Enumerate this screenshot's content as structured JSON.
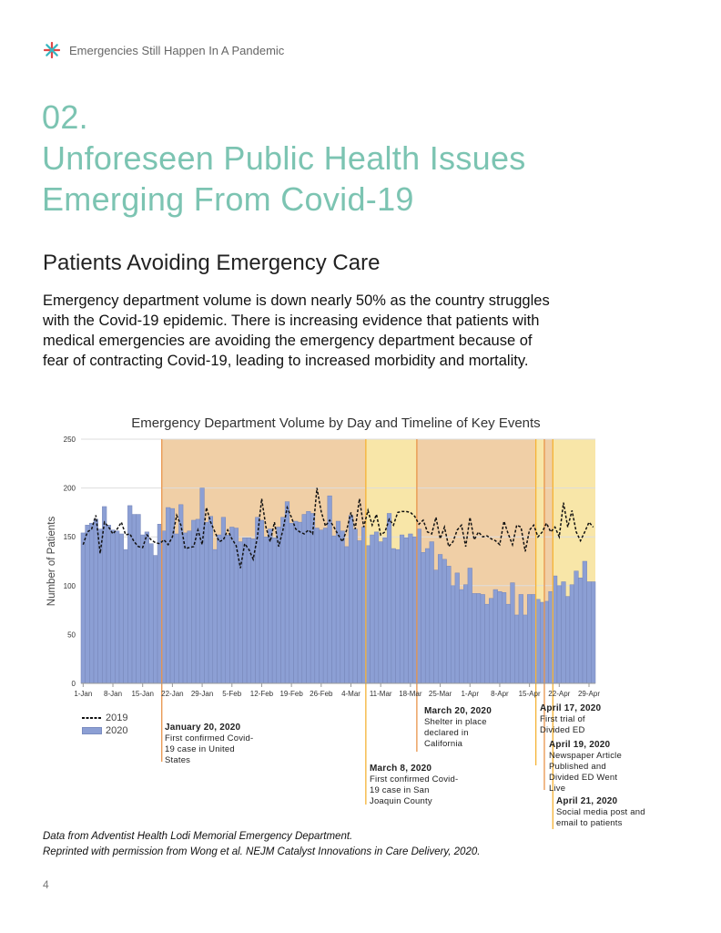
{
  "header": {
    "logo_icon": "asterisk-star-logo-icon",
    "title": "Emergencies Still Happen In A Pandemic"
  },
  "section": {
    "number": "02.",
    "title_line1": "Unforeseen Public Health Issues",
    "title_line2": "Emerging From Covid-19",
    "accent": "#7cc4b2"
  },
  "subheading": "Patients Avoiding Emergency Care",
  "paragraph": "Emergency department volume is down nearly 50% as the country struggles with the Covid-19 epidemic. There is increasing evidence that patients with medical emergencies are avoiding the emergency department because of fear of contracting Covid-19, leading to increased morbidity and mortality.",
  "chart_data": {
    "type": "bar",
    "title": "Emergency Department Volume by Day and Timeline of Key Events",
    "ylabel": "Number of Patients",
    "xlabel": "",
    "ylim": [
      0,
      250
    ],
    "yticks": [
      0,
      50,
      100,
      150,
      200,
      250
    ],
    "grid": true,
    "legend_placement": "bottom-left",
    "xtick_labels": [
      "1-Jan",
      "8-Jan",
      "15-Jan",
      "22-Jan",
      "29-Jan",
      "5-Feb",
      "12-Feb",
      "19-Feb",
      "26-Feb",
      "4-Mar",
      "11-Mar",
      "18-Mar",
      "25-Mar",
      "1-Apr",
      "8-Apr",
      "15-Apr",
      "22-Apr",
      "29-Apr"
    ],
    "series": [
      {
        "name": "2020",
        "kind": "bar",
        "color": "#8c9fd4",
        "values": [
          154,
          162,
          164,
          168,
          158,
          181,
          162,
          157,
          156,
          153,
          137,
          182,
          173,
          173,
          152,
          155,
          143,
          131,
          163,
          156,
          180,
          179,
          153,
          183,
          154,
          156,
          167,
          168,
          200,
          165,
          171,
          137,
          152,
          170,
          152,
          160,
          159,
          145,
          149,
          149,
          148,
          170,
          167,
          150,
          158,
          149,
          160,
          170,
          186,
          164,
          166,
          165,
          173,
          176,
          174,
          159,
          157,
          159,
          192,
          151,
          166,
          156,
          140,
          172,
          158,
          146,
          160,
          141,
          152,
          155,
          145,
          149,
          174,
          138,
          137,
          152,
          149,
          153,
          150,
          158,
          134,
          138,
          145,
          116,
          132,
          127,
          120,
          100,
          113,
          96,
          101,
          118,
          92,
          92,
          91,
          81,
          87,
          96,
          94,
          93,
          81,
          103,
          70,
          91,
          70,
          91,
          91,
          86,
          83,
          84,
          94,
          110,
          100,
          104,
          89,
          101,
          115,
          108,
          125,
          104,
          104
        ]
      },
      {
        "name": "2019",
        "kind": "dashed-line",
        "color": "#111111",
        "values": [
          142,
          155,
          158,
          172,
          133,
          165,
          160,
          153,
          158,
          165,
          152,
          153,
          145,
          140,
          139,
          152,
          147,
          144,
          143,
          147,
          142,
          150,
          172,
          162,
          138,
          139,
          140,
          157,
          142,
          180,
          165,
          155,
          145,
          147,
          157,
          148,
          141,
          118,
          143,
          137,
          127,
          150,
          189,
          160,
          145,
          165,
          140,
          157,
          180,
          170,
          158,
          155,
          153,
          157,
          153,
          200,
          176,
          161,
          167,
          160,
          152,
          145,
          157,
          175,
          158,
          189,
          160,
          177,
          162,
          173,
          152,
          155,
          168,
          162,
          175,
          176,
          176,
          175,
          171,
          163,
          167,
          155,
          153,
          170,
          148,
          160,
          140,
          145,
          157,
          162,
          140,
          170,
          147,
          155,
          150,
          151,
          148,
          146,
          142,
          166,
          153,
          142,
          162,
          160,
          135,
          157,
          162,
          150,
          155,
          164,
          155,
          160,
          150,
          185,
          160,
          177,
          155,
          146,
          155,
          165,
          160
        ]
      }
    ],
    "shading": {
      "orange": "#f0cfa6",
      "yellow": "#f8e6a8"
    },
    "events": [
      {
        "date": "January 20, 2020",
        "text": "First confirmed Covid-19 case in United States",
        "color": "#e8944a"
      },
      {
        "date": "March 8, 2020",
        "text": "First confirmed Covid-19 case in San Joaquin County",
        "color": "#f5b335"
      },
      {
        "date": "March 20, 2020",
        "text": "Shelter in place declared in California",
        "color": "#e8944a"
      },
      {
        "date": "April 17, 2020",
        "text": "First trial of Divided ED",
        "color": "#f5b335"
      },
      {
        "date": "April 19, 2020",
        "text": "Newspaper Article Published and Divided ED Went Live",
        "color": "#e8944a"
      },
      {
        "date": "April 21, 2020",
        "text": "Social media post and email to patients",
        "color": "#f5b335"
      }
    ]
  },
  "footnotes": [
    "Data from Adventist Health Lodi Memorial Emergency Department.",
    "Reprinted with permission from Wong et al. NEJM Catalyst Innovations in Care Delivery, 2020."
  ],
  "page_number": "4"
}
